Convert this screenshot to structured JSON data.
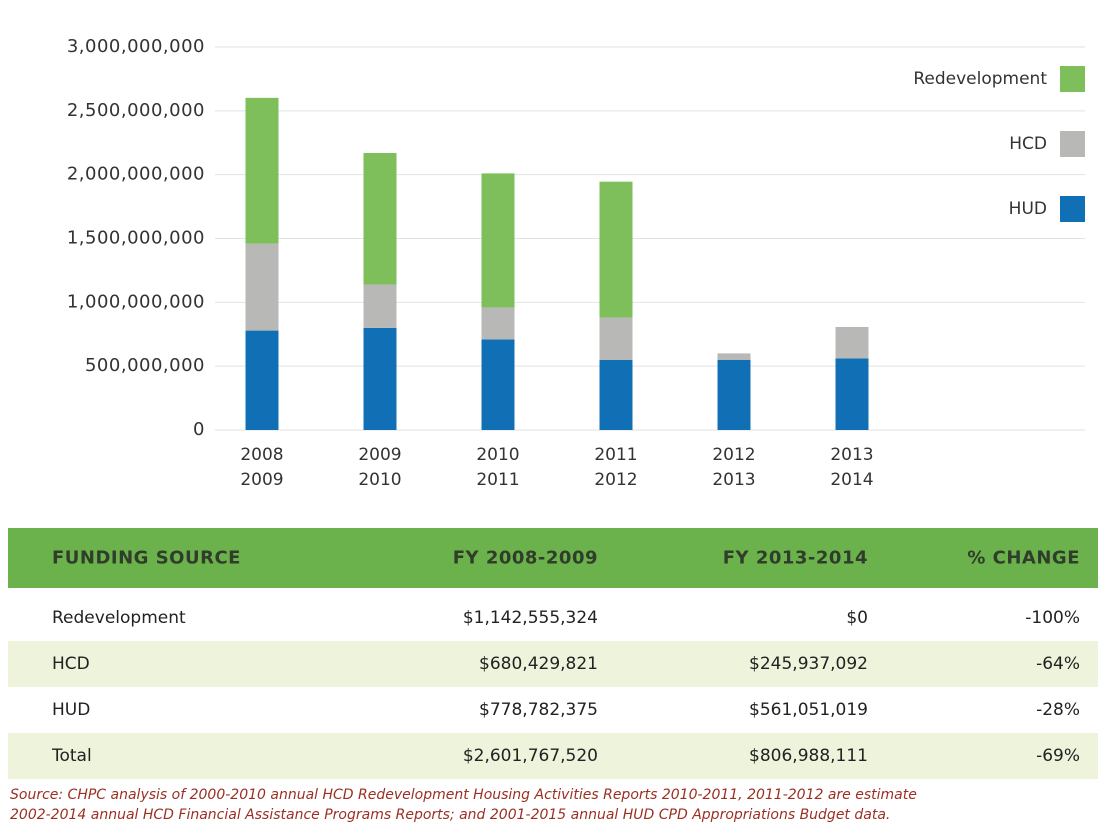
{
  "chart_data": {
    "type": "stacked_bar",
    "categories": [
      [
        "2008",
        "2009"
      ],
      [
        "2009",
        "2010"
      ],
      [
        "2010",
        "2011"
      ],
      [
        "2011",
        "2012"
      ],
      [
        "2012",
        "2013"
      ],
      [
        "2013",
        "2014"
      ]
    ],
    "series": [
      {
        "name": "HUD",
        "color": "#1170b5",
        "values": [
          778782375,
          800000000,
          710000000,
          550000000,
          550000000,
          561051019
        ]
      },
      {
        "name": "HCD",
        "color": "#b8b8b6",
        "values": [
          680429821,
          340000000,
          250000000,
          330000000,
          50000000,
          245937092
        ]
      },
      {
        "name": "Redevelopment",
        "color": "#7ebf5b",
        "values": [
          1142555324,
          1030000000,
          1050000000,
          1065000000,
          0,
          0
        ]
      }
    ],
    "ylim": [
      0,
      3000000000
    ],
    "yticks": [
      0,
      {
        "value": 500000000,
        "label": "500,000,000"
      },
      {
        "value": 1000000000,
        "label": "1,000,000,000"
      },
      {
        "value": 1500000000,
        "label": "1,500,000,000"
      },
      {
        "value": 2000000000,
        "label": "2,000,000,000"
      },
      {
        "value": 2500000000,
        "label": "2,500,000,000"
      },
      {
        "value": 3000000000,
        "label": "3,000,000,000"
      }
    ],
    "grid": true,
    "legend": "right"
  },
  "table": {
    "header": [
      "FUNDING SOURCE",
      "FY 2008-2009",
      "FY 2013-2014",
      "% CHANGE"
    ],
    "rows": [
      [
        "Redevelopment",
        "$1,142,555,324",
        "$0",
        "-100%"
      ],
      [
        "HCD",
        "$680,429,821",
        "$245,937,092",
        "-64%"
      ],
      [
        "HUD",
        "$778,782,375",
        "$561,051,019",
        "-28%"
      ],
      [
        "Total",
        "$2,601,767,520",
        "$806,988,111",
        "-69%"
      ]
    ]
  },
  "source": [
    "Source: CHPC analysis of 2000-2010 annual HCD Redevelopment Housing Activities Reports 2010-2011, 2011-2012 are estimate",
    "2002-2014 annual HCD Financial Assistance Programs Reports; and 2001-2015 annual HUD CPD Appropriations Budget data."
  ]
}
